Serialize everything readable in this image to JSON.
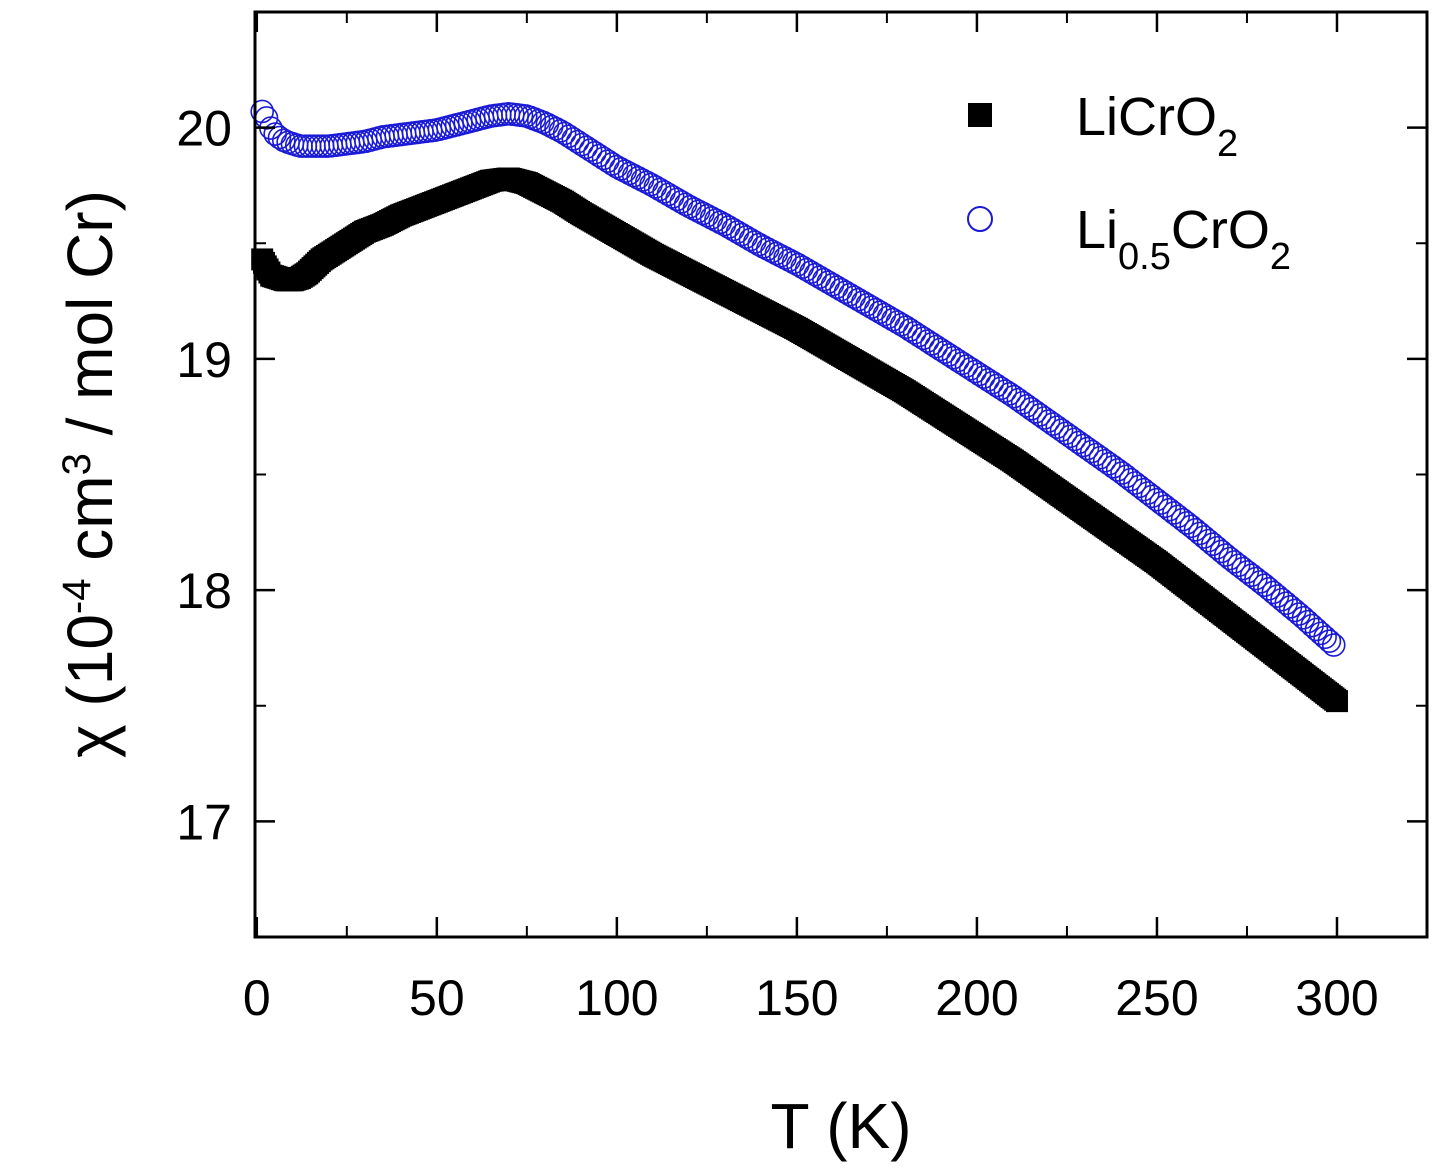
{
  "chart_data": {
    "type": "scatter",
    "xlabel": "T (K)",
    "ylabel": {
      "prefix": "χ (10",
      "exp1": "-4",
      "mid": " cm",
      "exp2": "3",
      "suffix": " / mol Cr)"
    },
    "xlim": [
      -0.5,
      325
    ],
    "ylim": [
      16.5,
      20.5
    ],
    "x_ticks": [
      0,
      50,
      100,
      150,
      200,
      250,
      300
    ],
    "x_tick_labels": [
      "0",
      "50",
      "100",
      "150",
      "200",
      "250",
      "300"
    ],
    "y_ticks": [
      17,
      18,
      19,
      20
    ],
    "y_tick_labels": [
      "17",
      "18",
      "19",
      "20"
    ],
    "legend_position": "top-right",
    "series": [
      {
        "name": "LiCrO2",
        "legend": {
          "base1": "LiCrO",
          "sub1": "2",
          "base2": "",
          "sub2": ""
        },
        "marker": "filled-square",
        "color": "#000000",
        "points": [
          [
            1.5,
            19.43
          ],
          [
            2.5,
            19.4
          ],
          [
            4,
            19.36
          ],
          [
            6,
            19.35
          ],
          [
            8,
            19.34
          ],
          [
            10,
            19.34
          ],
          [
            12,
            19.35
          ],
          [
            14,
            19.37
          ],
          [
            16,
            19.4
          ],
          [
            18,
            19.43
          ],
          [
            20,
            19.45
          ],
          [
            25,
            19.5
          ],
          [
            30,
            19.55
          ],
          [
            35,
            19.58
          ],
          [
            40,
            19.62
          ],
          [
            45,
            19.65
          ],
          [
            50,
            19.68
          ],
          [
            55,
            19.71
          ],
          [
            60,
            19.74
          ],
          [
            65,
            19.77
          ],
          [
            70,
            19.78
          ],
          [
            75,
            19.76
          ],
          [
            80,
            19.72
          ],
          [
            85,
            19.68
          ],
          [
            90,
            19.63
          ],
          [
            100,
            19.54
          ],
          [
            110,
            19.45
          ],
          [
            120,
            19.37
          ],
          [
            130,
            19.29
          ],
          [
            140,
            19.21
          ],
          [
            150,
            19.13
          ],
          [
            160,
            19.04
          ],
          [
            170,
            18.95
          ],
          [
            180,
            18.86
          ],
          [
            190,
            18.76
          ],
          [
            200,
            18.66
          ],
          [
            210,
            18.56
          ],
          [
            220,
            18.45
          ],
          [
            230,
            18.34
          ],
          [
            240,
            18.23
          ],
          [
            250,
            18.12
          ],
          [
            260,
            18.0
          ],
          [
            270,
            17.88
          ],
          [
            280,
            17.76
          ],
          [
            290,
            17.64
          ],
          [
            300,
            17.52
          ]
        ]
      },
      {
        "name": "Li0.5CrO2",
        "legend": {
          "base1": "Li",
          "sub1": "0.5",
          "base2": "CrO",
          "sub2": "2"
        },
        "marker": "open-circle",
        "color": "#1a1ad6",
        "points": [
          [
            1.5,
            20.07
          ],
          [
            2.5,
            20.05
          ],
          [
            3.5,
            20.01
          ],
          [
            4.5,
            19.98
          ],
          [
            6,
            19.96
          ],
          [
            8,
            19.94
          ],
          [
            10,
            19.93
          ],
          [
            12,
            19.92
          ],
          [
            14,
            19.92
          ],
          [
            16,
            19.92
          ],
          [
            18,
            19.92
          ],
          [
            20,
            19.92
          ],
          [
            25,
            19.93
          ],
          [
            30,
            19.94
          ],
          [
            35,
            19.96
          ],
          [
            40,
            19.97
          ],
          [
            45,
            19.98
          ],
          [
            50,
            19.99
          ],
          [
            55,
            20.01
          ],
          [
            60,
            20.03
          ],
          [
            65,
            20.05
          ],
          [
            70,
            20.06
          ],
          [
            75,
            20.05
          ],
          [
            80,
            20.02
          ],
          [
            85,
            19.98
          ],
          [
            90,
            19.93
          ],
          [
            100,
            19.83
          ],
          [
            110,
            19.75
          ],
          [
            120,
            19.66
          ],
          [
            130,
            19.58
          ],
          [
            140,
            19.49
          ],
          [
            150,
            19.41
          ],
          [
            160,
            19.32
          ],
          [
            170,
            19.23
          ],
          [
            180,
            19.14
          ],
          [
            190,
            19.04
          ],
          [
            200,
            18.94
          ],
          [
            210,
            18.84
          ],
          [
            220,
            18.73
          ],
          [
            230,
            18.62
          ],
          [
            240,
            18.51
          ],
          [
            250,
            18.39
          ],
          [
            260,
            18.27
          ],
          [
            270,
            18.14
          ],
          [
            280,
            18.02
          ],
          [
            290,
            17.89
          ],
          [
            300,
            17.75
          ]
        ]
      }
    ]
  }
}
